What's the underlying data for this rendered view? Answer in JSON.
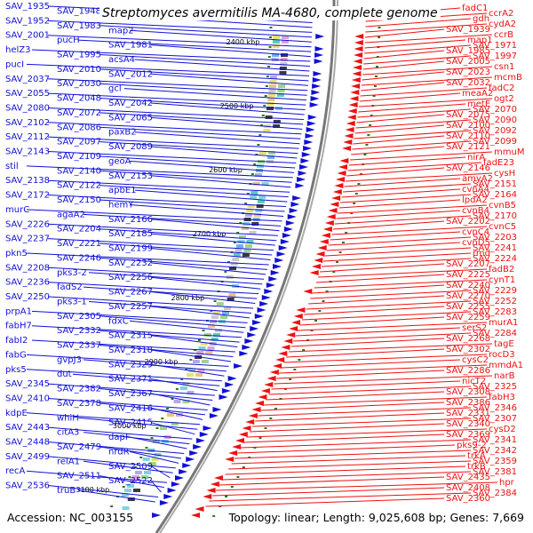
{
  "title": "Streptomyces avermitilis MA-4680, complete genome",
  "footer": {
    "accession": "Accession: NC_003155",
    "summary": "Topology: linear; Length: 9,025,608 bp; Genes: 7,669"
  },
  "colors": {
    "left_strand": "#1010d8",
    "right_strand": "#ee1111",
    "backbone": "#777777",
    "tick_dot": "#2a7a1a"
  },
  "ruler_labels": [
    "2400 kbp",
    "2500 kbp",
    "2600 kbp",
    "2700 kbp",
    "2800 kbp",
    "2900 kbp",
    "3000 kbp",
    "3100 kbp"
  ],
  "left_genes": [
    "SAV_1935",
    "SAV_1948",
    "xthA",
    "SAV_1952",
    "SAV_1983",
    "map2",
    "SAV_2001",
    "pucH",
    "SAV_1981",
    "helZ3",
    "SAV_1995",
    "acsA4",
    "pucI",
    "SAV_2010",
    "SAV_2012",
    "SAV_2037",
    "SAV_2030",
    "gcl",
    "SAV_2055",
    "SAV_2048",
    "SAV_2042",
    "SAV_2080",
    "SAV_2072",
    "SAV_2065",
    "SAV_2102",
    "SAV_2086",
    "paxB2",
    "SAV_2112",
    "SAV_2097",
    "SAV_2089",
    "SAV_2143",
    "SAV_2109",
    "geoA",
    "stil",
    "SAV_2140",
    "SAV_2153",
    "SAV_2138",
    "SAV_2122",
    "apbE1",
    "SAV_2172",
    "SAV_2150",
    "hemY",
    "murC",
    "agaA2",
    "SAV_2166",
    "SAV_2226",
    "SAV_2204",
    "SAV_2185",
    "SAV_2237",
    "SAV_2221",
    "SAV_2199",
    "pkn5",
    "SAV_2246",
    "SAV_2232",
    "SAV_2208",
    "pks3-2",
    "SAV_2256",
    "SAV_2236",
    "fadS2",
    "SAV_2267",
    "SAV_2250",
    "pks3-1",
    "SAV_2257",
    "prpA1",
    "SAV_2305",
    "fdxC",
    "fabH7",
    "SAV_2332",
    "SAV_2315",
    "fabI2",
    "SAV_2337",
    "SAV_2318",
    "fabG",
    "gvpJ3",
    "SAV_2329",
    "pks5",
    "dut",
    "SAV_2371",
    "SAV_2345",
    "SAV_2382",
    "SAV_2367",
    "SAV_2410",
    "SAV_2378",
    "SAV_2416",
    "kdpE",
    "whiH",
    "SAV_2415",
    "SAV_2443",
    "citA3",
    "dapF",
    "SAV_2448",
    "SAV_2479",
    "nrdR",
    "SAV_2499",
    "relA1",
    "SAV_2509",
    "recA",
    "SAV_2511",
    "SAV_2522",
    "SAV_2536",
    "truB"
  ],
  "right_genes": [
    "fadC1",
    "ccrA2",
    "gdh",
    "cydA2",
    "SAV_1939",
    "ccrB",
    "map1",
    "SAV_1971",
    "SAV_1985",
    "SAV_1997",
    "SAV_2005",
    "csn1",
    "SAV_2023",
    "mcmB",
    "SAV_2032",
    "fadC2",
    "meaA2",
    "ogt2",
    "metE",
    "SAV_2070",
    "SAV_2075",
    "SAV_2090",
    "SAV_2100",
    "SAV_2092",
    "SAV_2110",
    "SAV_2099",
    "SAV_2121",
    "mmuM",
    "nirA",
    "fadE23",
    "SAV_2146",
    "cysH",
    "amyA2",
    "SAV_2151",
    "cvnA4",
    "SAV_2164",
    "lpdA2",
    "cvnB5",
    "cvnB4",
    "SAV_2170",
    "SAV_2202",
    "cvnC5",
    "cvnC4",
    "SAV_2203",
    "cvnD5",
    "SAV_2241",
    "rmd",
    "SAV_2224",
    "SAV_2207",
    "fadB2",
    "SAV_2225",
    "cynT1",
    "SAV_2240",
    "SAV_2229",
    "SAV_2270",
    "SAV_2252",
    "SAV_2255",
    "SAV_2283",
    "SAV_2259",
    "murA1",
    "serS2",
    "SAV_2284",
    "SAV_2268",
    "tagE",
    "SAV_2302",
    "rocD3",
    "cysC2",
    "mmdA1",
    "SAV_2286",
    "narB",
    "nicT2",
    "SAV_2325",
    "SAV_2308",
    "fabH3",
    "SAV_2386",
    "SAV_2346",
    "SAV_2331",
    "SAV_2307",
    "SAV_2340",
    "cysD2",
    "SAV_2369",
    "SAV_2341",
    "pks9-2",
    "SAV_2342",
    "trkA",
    "SAV_2359",
    "trkB",
    "SAV_2381",
    "SAV_2435",
    "hpr",
    "SAV_2408",
    "SAV_2384",
    "SAV_2360"
  ]
}
